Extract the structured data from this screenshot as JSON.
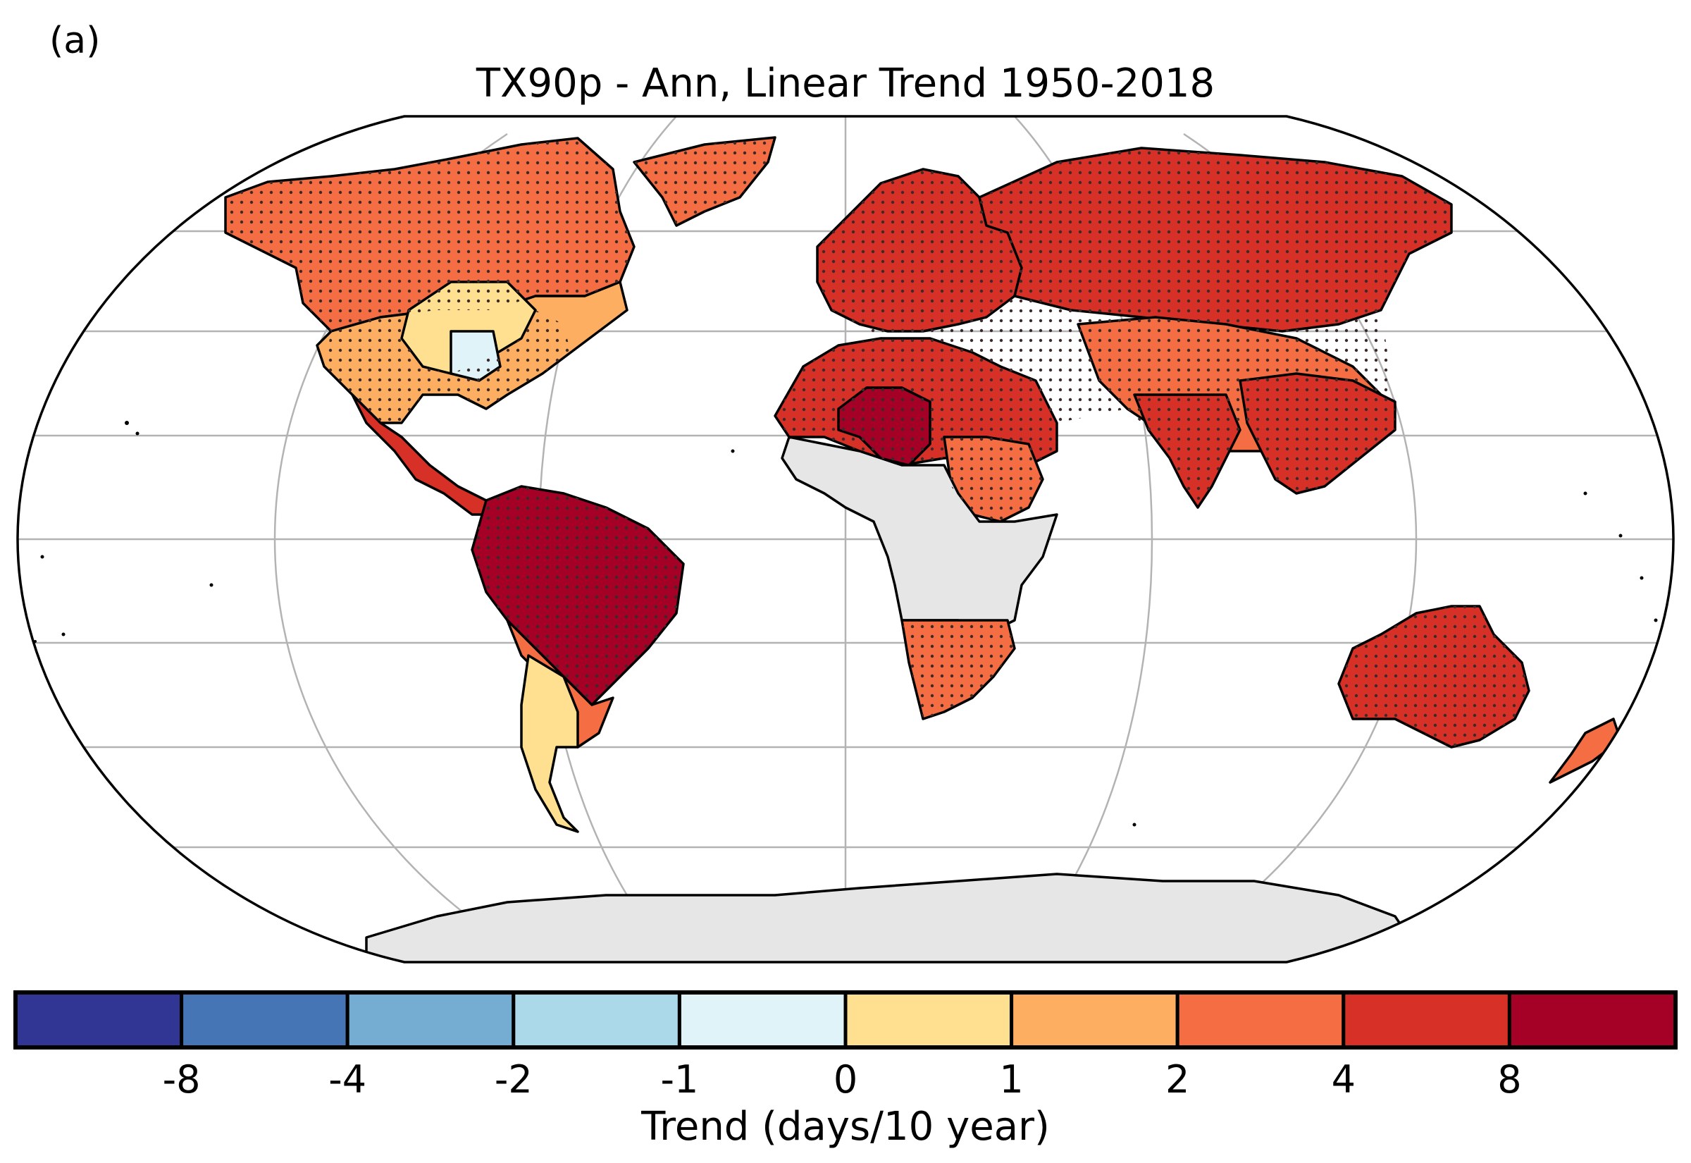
{
  "figure": {
    "panel_label": "(a)",
    "title": "TX90p - Ann, Linear Trend 1950-2018"
  },
  "colorbar": {
    "label": "Trend (days/10 year)",
    "tick_labels": [
      "-8",
      "-4",
      "-2",
      "-1",
      "0",
      "1",
      "2",
      "4",
      "8"
    ],
    "bins": [
      {
        "range": "< -8",
        "color": "#313695"
      },
      {
        "range": "-8 to -4",
        "color": "#4575b4"
      },
      {
        "range": "-4 to -2",
        "color": "#74add1"
      },
      {
        "range": "-2 to -1",
        "color": "#abd9e9"
      },
      {
        "range": "-1 to 0",
        "color": "#e0f3f8"
      },
      {
        "range": "0 to 1",
        "color": "#fee090"
      },
      {
        "range": "1 to 2",
        "color": "#fdae61"
      },
      {
        "range": "2 to 4",
        "color": "#f46d43"
      },
      {
        "range": "4 to 8",
        "color": "#d73027"
      },
      {
        "range": "> 8",
        "color": "#a50026"
      }
    ]
  },
  "map": {
    "projection": "Robinson",
    "no_data_color": "#e6e6e6",
    "significance": "stippled",
    "regions": [
      {
        "name": "north-america-north",
        "color": "#f46d43"
      },
      {
        "name": "north-america-south",
        "color": "#fdae61"
      },
      {
        "name": "usa-central",
        "color": "#fee090"
      },
      {
        "name": "usa-southeast",
        "color": "#e0f3f8"
      },
      {
        "name": "greenland",
        "color": "#f46d43"
      },
      {
        "name": "central-america",
        "color": "#d73027"
      },
      {
        "name": "south-america-north",
        "color": "#a50026"
      },
      {
        "name": "south-america-south",
        "color": "#f46d43"
      },
      {
        "name": "argentina",
        "color": "#fee090"
      },
      {
        "name": "europe",
        "color": "#d73027"
      },
      {
        "name": "russia",
        "color": "#d73027"
      },
      {
        "name": "central-asia",
        "color": "#f46d43"
      },
      {
        "name": "north-africa",
        "color": "#d73027"
      },
      {
        "name": "sahel",
        "color": "#a50026"
      },
      {
        "name": "east-africa",
        "color": "#f46d43"
      },
      {
        "name": "central-africa",
        "color": "#e6e6e6"
      },
      {
        "name": "southern-africa",
        "color": "#f46d43"
      },
      {
        "name": "india",
        "color": "#d73027"
      },
      {
        "name": "southeast-asia",
        "color": "#d73027"
      },
      {
        "name": "australia",
        "color": "#d73027"
      },
      {
        "name": "new-zealand",
        "color": "#f46d43"
      },
      {
        "name": "antarctica",
        "color": "#e6e6e6"
      }
    ]
  }
}
